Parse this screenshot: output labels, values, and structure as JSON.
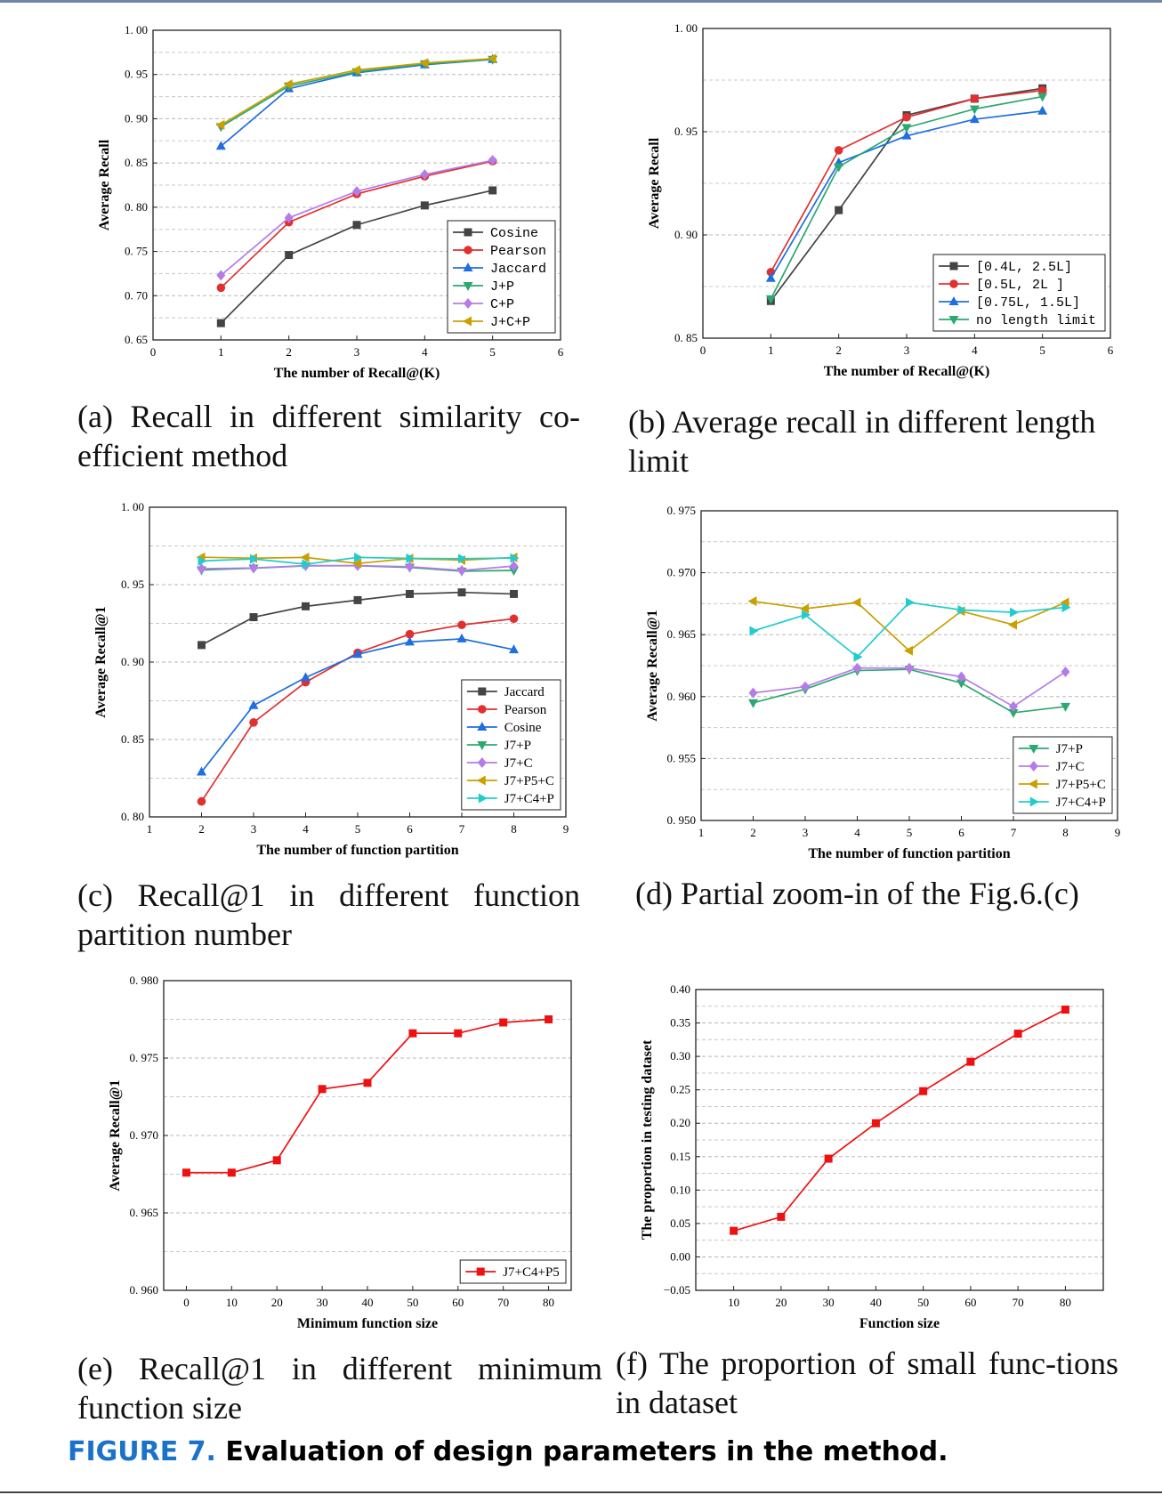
{
  "figure": {
    "label": "FIGURE 7.",
    "title": "Evaluation of design parameters in the method."
  },
  "chart_data": [
    {
      "id": "a",
      "type": "line",
      "caption": "(a) Recall in different similarity co-efficient method",
      "xlabel": "The number of Recall@(K)",
      "ylabel": "Average Recall",
      "xlim": [
        0,
        6
      ],
      "ylim": [
        0.65,
        1.0
      ],
      "xticks": [
        0,
        1,
        2,
        3,
        4,
        5,
        6
      ],
      "yticks": [
        0.65,
        0.7,
        0.75,
        0.8,
        0.85,
        0.9,
        0.95,
        1.0
      ],
      "ydecimals": 2,
      "tick_separator_space": true,
      "grid": "horizontal-dashed",
      "legend_position": "bottom-right",
      "legend_font": "mono",
      "x": [
        1,
        2,
        3,
        4,
        5
      ],
      "series": [
        {
          "name": "Cosine",
          "color": "#444444",
          "marker": "square",
          "values": [
            0.669,
            0.746,
            0.78,
            0.802,
            0.819
          ]
        },
        {
          "name": "Pearson",
          "color": "#e03030",
          "marker": "circle",
          "values": [
            0.709,
            0.783,
            0.815,
            0.835,
            0.852
          ]
        },
        {
          "name": "Jaccard",
          "color": "#1f6fe0",
          "marker": "triangle-up",
          "values": [
            0.869,
            0.934,
            0.952,
            0.961,
            0.967
          ]
        },
        {
          "name": "J+P",
          "color": "#2ca870",
          "marker": "triangle-down",
          "values": [
            0.891,
            0.937,
            0.953,
            0.962,
            0.967
          ]
        },
        {
          "name": "C+P",
          "color": "#b57ce8",
          "marker": "diamond",
          "values": [
            0.723,
            0.788,
            0.818,
            0.837,
            0.853
          ]
        },
        {
          "name": "J+C+P",
          "color": "#c8a000",
          "marker": "triangle-left",
          "values": [
            0.893,
            0.939,
            0.955,
            0.963,
            0.968
          ]
        }
      ]
    },
    {
      "id": "b",
      "type": "line",
      "caption": "(b) Average recall in different length limit",
      "xlabel": "The number of Recall@(K)",
      "ylabel": "Average Recall",
      "xlim": [
        0,
        6
      ],
      "ylim": [
        0.85,
        1.0
      ],
      "xticks": [
        0,
        1,
        2,
        3,
        4,
        5,
        6
      ],
      "yticks": [
        0.85,
        0.9,
        0.95,
        1.0
      ],
      "ydecimals": 2,
      "tick_separator_space": true,
      "grid": "horizontal-dashed",
      "legend_position": "bottom-right",
      "legend_font": "mono",
      "x": [
        1,
        2,
        3,
        4,
        5
      ],
      "series": [
        {
          "name": "[0.4L, 2.5L]",
          "color": "#444444",
          "marker": "square",
          "values": [
            0.868,
            0.912,
            0.958,
            0.966,
            0.971
          ]
        },
        {
          "name": "[0.5L,  2L ]",
          "color": "#e03030",
          "marker": "circle",
          "values": [
            0.882,
            0.941,
            0.957,
            0.966,
            0.97
          ]
        },
        {
          "name": "[0.75L, 1.5L]",
          "color": "#1f6fe0",
          "marker": "triangle-up",
          "values": [
            0.879,
            0.935,
            0.948,
            0.956,
            0.96
          ]
        },
        {
          "name": "no length limit",
          "color": "#2ca870",
          "marker": "triangle-down",
          "values": [
            0.869,
            0.933,
            0.952,
            0.961,
            0.967
          ]
        }
      ]
    },
    {
      "id": "c",
      "type": "line",
      "caption": "(c) Recall@1 in different function partition number",
      "xlabel": "The number of function partition",
      "ylabel": "Average Recall@1",
      "xlim": [
        1,
        9
      ],
      "ylim": [
        0.8,
        1.0
      ],
      "xticks": [
        1,
        2,
        3,
        4,
        5,
        6,
        7,
        8,
        9
      ],
      "yticks": [
        0.8,
        0.85,
        0.9,
        0.95,
        1.0
      ],
      "ydecimals": 2,
      "tick_separator_space": true,
      "grid": "horizontal-dashed",
      "legend_position": "bottom-right",
      "legend_font": "serif",
      "x": [
        2,
        3,
        4,
        5,
        6,
        7,
        8
      ],
      "series": [
        {
          "name": "Jaccard",
          "color": "#444444",
          "marker": "square",
          "values": [
            0.911,
            0.929,
            0.936,
            0.94,
            0.944,
            0.945,
            0.944
          ]
        },
        {
          "name": "Pearson",
          "color": "#e03030",
          "marker": "circle",
          "values": [
            0.81,
            0.861,
            0.887,
            0.906,
            0.918,
            0.924,
            0.928
          ]
        },
        {
          "name": "Cosine",
          "color": "#1f6fe0",
          "marker": "triangle-up",
          "values": [
            0.829,
            0.872,
            0.89,
            0.905,
            0.913,
            0.915,
            0.908
          ]
        },
        {
          "name": "J7+P",
          "color": "#2ca870",
          "marker": "triangle-down",
          "values": [
            0.9595,
            0.9606,
            0.9621,
            0.9622,
            0.9611,
            0.9587,
            0.9592
          ]
        },
        {
          "name": "J7+C",
          "color": "#b57ce8",
          "marker": "diamond",
          "values": [
            0.9603,
            0.9608,
            0.9623,
            0.9623,
            0.9616,
            0.9592,
            0.962
          ]
        },
        {
          "name": "J7+P5+C",
          "color": "#c8a000",
          "marker": "triangle-left",
          "values": [
            0.9677,
            0.9671,
            0.9676,
            0.9637,
            0.9669,
            0.9658,
            0.9676
          ]
        },
        {
          "name": "J7+C4+P",
          "color": "#22cccc",
          "marker": "triangle-right",
          "values": [
            0.9653,
            0.9666,
            0.9632,
            0.9676,
            0.967,
            0.9668,
            0.9672
          ]
        }
      ]
    },
    {
      "id": "d",
      "type": "line",
      "caption": "(d) Partial zoom-in of the Fig.6.(c)",
      "xlabel": "The number of function partition",
      "ylabel": "Average Recall@1",
      "xlim": [
        1,
        9
      ],
      "ylim": [
        0.95,
        0.975
      ],
      "xticks": [
        1,
        2,
        3,
        4,
        5,
        6,
        7,
        8,
        9
      ],
      "yticks": [
        0.95,
        0.955,
        0.96,
        0.965,
        0.97,
        0.975
      ],
      "ydecimals": 3,
      "tick_separator_space": true,
      "grid": "horizontal-dashed",
      "legend_position": "bottom-right",
      "legend_font": "serif",
      "x": [
        2,
        3,
        4,
        5,
        6,
        7,
        8
      ],
      "series": [
        {
          "name": "J7+P",
          "color": "#2ca870",
          "marker": "triangle-down",
          "values": [
            0.9595,
            0.9606,
            0.9621,
            0.9622,
            0.9611,
            0.9587,
            0.9592
          ]
        },
        {
          "name": "J7+C",
          "color": "#b57ce8",
          "marker": "diamond",
          "values": [
            0.9603,
            0.9608,
            0.9623,
            0.9623,
            0.9616,
            0.9592,
            0.962
          ]
        },
        {
          "name": "J7+P5+C",
          "color": "#c8a000",
          "marker": "triangle-left",
          "values": [
            0.9677,
            0.9671,
            0.9676,
            0.9637,
            0.9669,
            0.9658,
            0.9676
          ]
        },
        {
          "name": "J7+C4+P",
          "color": "#22cccc",
          "marker": "triangle-right",
          "values": [
            0.9653,
            0.9666,
            0.9632,
            0.9676,
            0.967,
            0.9668,
            0.9672
          ]
        }
      ]
    },
    {
      "id": "e",
      "type": "line",
      "caption": "(e) Recall@1 in different minimum function size",
      "xlabel": "Minimum function size",
      "ylabel": "Average Recall@1",
      "xlim": [
        -5,
        85
      ],
      "ylim": [
        0.96,
        0.98
      ],
      "xticks": [
        0,
        10,
        20,
        30,
        40,
        50,
        60,
        70,
        80
      ],
      "yticks": [
        0.96,
        0.965,
        0.97,
        0.975,
        0.98
      ],
      "ydecimals": 3,
      "tick_separator_space": true,
      "grid": "horizontal-dashed",
      "legend_position": "bottom-right",
      "legend_font": "serif",
      "x": [
        0,
        10,
        20,
        30,
        40,
        50,
        60,
        70,
        80
      ],
      "series": [
        {
          "name": "J7+C4+P5",
          "color": "#ee1111",
          "marker": "square",
          "values": [
            0.9676,
            0.9676,
            0.9684,
            0.973,
            0.9734,
            0.9766,
            0.9766,
            0.9773,
            0.9775
          ]
        }
      ]
    },
    {
      "id": "f",
      "type": "line",
      "caption": "(f) The proportion of small func-tions in dataset",
      "xlabel": "Function size",
      "ylabel": "The proportion in testing dataset",
      "xlim": [
        2,
        88
      ],
      "ylim": [
        -0.05,
        0.4
      ],
      "xticks": [
        10,
        20,
        30,
        40,
        50,
        60,
        70,
        80
      ],
      "yticks": [
        -0.05,
        0.0,
        0.05,
        0.1,
        0.15,
        0.2,
        0.25,
        0.3,
        0.35,
        0.4
      ],
      "ydecimals": 2,
      "tick_separator_space": false,
      "grid": "horizontal-dashed",
      "legend_position": "none",
      "legend_font": "serif",
      "x": [
        10,
        20,
        30,
        40,
        50,
        60,
        70,
        80
      ],
      "series": [
        {
          "name": "",
          "color": "#ee1111",
          "marker": "square",
          "values": [
            0.039,
            0.06,
            0.147,
            0.2,
            0.248,
            0.292,
            0.334,
            0.37
          ]
        }
      ]
    }
  ]
}
